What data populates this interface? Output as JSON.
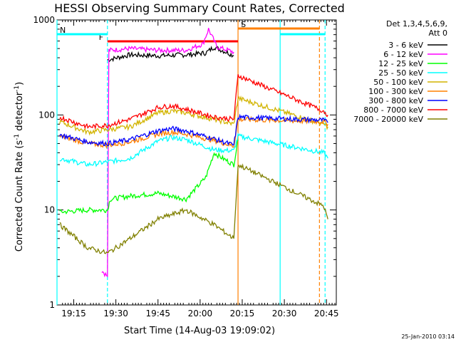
{
  "chart_data": {
    "type": "line",
    "title": "HESSI Observing Summary Count Rates, Corrected",
    "xlabel": "Start Time (14-Aug-03 19:09:02)",
    "ylabel_main": "Corrected Count Rate (s",
    "ylabel_sup1": "-1",
    "ylabel_mid": " detector",
    "ylabel_sup2": "-1",
    "ylabel_end": ")",
    "yscale": "log",
    "ylim": [
      1,
      1000
    ],
    "xlim": [
      "19:09:02",
      "20:48:30"
    ],
    "x_ticks": [
      "19:15",
      "19:30",
      "19:45",
      "20:00",
      "20:15",
      "20:30",
      "20:45"
    ],
    "y_ticks": [
      "1",
      "10",
      "100",
      "1000"
    ],
    "timestamp": "25-Jan-2010 03:14",
    "legend": {
      "header_line1": "Det 1,3,4,5,6,9,",
      "header_line2": "Att 0",
      "placement": "right"
    },
    "series": [
      {
        "name": "3 - 6 keV",
        "color": "#000000",
        "x": [
          "19:27:00",
          "19:35:00",
          "19:45:00",
          "19:55:00",
          "20:02:00",
          "20:05:00",
          "20:10:00",
          "20:12:00"
        ],
        "y": [
          380,
          430,
          420,
          430,
          450,
          520,
          450,
          420
        ]
      },
      {
        "name": "6 - 12 keV",
        "color": "#ff00ff",
        "x": [
          "19:25:00",
          "19:27:00",
          "19:27:30",
          "19:35:00",
          "19:45:00",
          "19:55:00",
          "20:01:00",
          "20:03:00",
          "20:06:00",
          "20:10:00",
          "20:12:00"
        ],
        "y": [
          2.3,
          2.0,
          480,
          500,
          480,
          480,
          560,
          800,
          520,
          480,
          460
        ]
      },
      {
        "name": "12 - 25 keV",
        "color": "#00ff00",
        "x": [
          "19:10:00",
          "19:20:00",
          "19:27:00",
          "19:28:00",
          "19:35:00",
          "19:45:00",
          "19:55:00",
          "20:02:00",
          "20:05:00",
          "20:08:00",
          "20:12:00",
          "20:13:30"
        ],
        "y": [
          9.5,
          10,
          10,
          13,
          14,
          15,
          13,
          22,
          40,
          35,
          30,
          55
        ]
      },
      {
        "name": "25 - 50 keV",
        "color": "#00ffff",
        "x": [
          "19:10:00",
          "19:20:00",
          "19:27:00",
          "19:35:00",
          "19:45:00",
          "19:50:00",
          "19:55:00",
          "20:05:00",
          "20:12:00",
          "20:13:30",
          "20:44:00",
          "20:45:30"
        ],
        "y": [
          35,
          30,
          32,
          35,
          53,
          58,
          55,
          43,
          42,
          60,
          40,
          35
        ]
      },
      {
        "name": "50 - 100 keV",
        "color": "#d2b400",
        "x": [
          "19:10:00",
          "19:20:00",
          "19:27:00",
          "19:35:00",
          "19:45:00",
          "19:50:00",
          "19:55:00",
          "20:05:00",
          "20:12:00",
          "20:13:30",
          "20:44:00",
          "20:45:30"
        ],
        "y": [
          85,
          66,
          70,
          75,
          105,
          110,
          105,
          90,
          80,
          150,
          80,
          75
        ]
      },
      {
        "name": "100 - 300 keV",
        "color": "#ff8000",
        "x": [
          "19:10:00",
          "19:20:00",
          "19:27:00",
          "19:35:00",
          "19:45:00",
          "19:50:00",
          "19:55:00",
          "20:05:00",
          "20:12:00",
          "20:13:30",
          "20:44:00",
          "20:45:30"
        ],
        "y": [
          60,
          50,
          48,
          52,
          63,
          66,
          63,
          54,
          47,
          90,
          85,
          80
        ]
      },
      {
        "name": "300 - 800 keV",
        "color": "#0000ff",
        "x": [
          "19:10:00",
          "19:20:00",
          "19:27:00",
          "19:35:00",
          "19:45:00",
          "19:50:00",
          "19:55:00",
          "20:05:00",
          "20:12:00",
          "20:13:30",
          "20:44:00",
          "20:45:30"
        ],
        "y": [
          62,
          52,
          50,
          55,
          68,
          72,
          68,
          56,
          48,
          95,
          88,
          83
        ]
      },
      {
        "name": "800 - 7000 keV",
        "color": "#ff0000",
        "x": [
          "19:10:00",
          "19:20:00",
          "19:27:00",
          "19:35:00",
          "19:45:00",
          "19:50:00",
          "19:55:00",
          "20:05:00",
          "20:12:00",
          "20:13:30",
          "20:44:00",
          "20:45:30"
        ],
        "y": [
          95,
          75,
          78,
          90,
          120,
          125,
          115,
          95,
          90,
          260,
          110,
          100
        ]
      },
      {
        "name": "7000 - 20000 keV",
        "color": "#808000",
        "x": [
          "19:10:00",
          "19:20:00",
          "19:27:00",
          "19:35:00",
          "19:45:00",
          "19:55:00",
          "20:05:00",
          "20:12:00",
          "20:13:30",
          "20:44:00",
          "20:45:30"
        ],
        "y": [
          7,
          4,
          3.5,
          5,
          8,
          10,
          7,
          5,
          30,
          11,
          8
        ]
      }
    ],
    "state_flags": [
      {
        "label": "F",
        "color": "#ff0000",
        "segments": [
          [
            "19:27:00",
            "20:13:30"
          ]
        ]
      },
      {
        "label": "N",
        "color": "#00ffff",
        "segments": [
          [
            "19:09:02",
            "19:27:00"
          ],
          [
            "20:28:30",
            "20:44:30"
          ]
        ]
      },
      {
        "label": "S",
        "color": "#ff8000",
        "segments": [
          [
            "20:13:30",
            "20:42:30"
          ]
        ]
      }
    ],
    "boundaries": [
      {
        "time": "19:09:02",
        "color": "#00ffff",
        "style": "solid"
      },
      {
        "time": "19:27:00",
        "color": "#00ffff",
        "style": "dashed"
      },
      {
        "time": "20:13:30",
        "color": "#ff8000",
        "style": "solid"
      },
      {
        "time": "20:28:30",
        "color": "#00ffff",
        "style": "solid"
      },
      {
        "time": "20:42:30",
        "color": "#ff8000",
        "style": "dashed"
      },
      {
        "time": "20:44:30",
        "color": "#00ffff",
        "style": "dashed"
      }
    ]
  }
}
